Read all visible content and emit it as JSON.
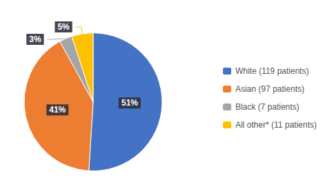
{
  "chart_data": {
    "type": "pie",
    "categories": [
      "White (119 patients)",
      "Asian (97 patients)",
      "Black (7 patients)",
      "All other* (11 patients)"
    ],
    "values": [
      51,
      41,
      3,
      5
    ],
    "value_labels": [
      "51%",
      "41%",
      "3%",
      "5%"
    ],
    "colors": [
      "#4472C4",
      "#ED7D31",
      "#A5A5A5",
      "#FFC000"
    ],
    "data_labels": true,
    "legend": "right"
  }
}
